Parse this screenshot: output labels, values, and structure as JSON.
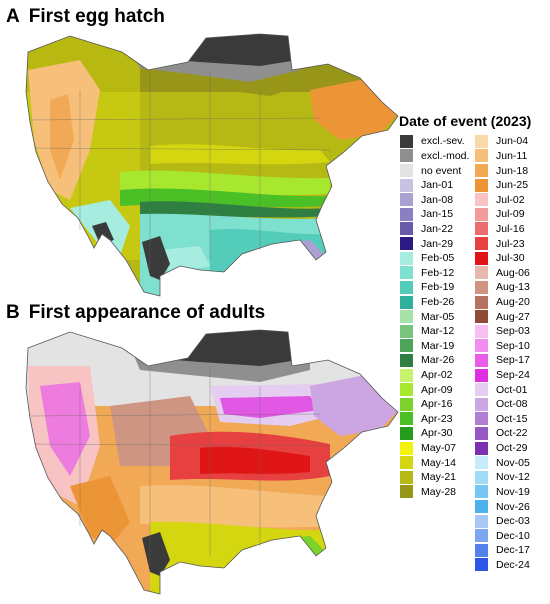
{
  "panels": [
    {
      "letter": "A",
      "title": "First egg hatch"
    },
    {
      "letter": "B",
      "title": "First appearance of adults"
    }
  ],
  "legend": {
    "title": "Date of event (2023)",
    "entries": [
      {
        "label": "excl.-sev.",
        "color": "#3a3a3a"
      },
      {
        "label": "excl.-mod.",
        "color": "#8f8f8f"
      },
      {
        "label": "no event",
        "color": "#e3e3e3"
      },
      {
        "label": "Jan-01",
        "color": "#c9c2e3"
      },
      {
        "label": "Jan-08",
        "color": "#aaa0d2"
      },
      {
        "label": "Jan-15",
        "color": "#8a7fc0"
      },
      {
        "label": "Jan-22",
        "color": "#6a5aac"
      },
      {
        "label": "Jan-29",
        "color": "#2e1a84"
      },
      {
        "label": "Feb-05",
        "color": "#a6ecdf"
      },
      {
        "label": "Feb-12",
        "color": "#7ee0cf"
      },
      {
        "label": "Feb-19",
        "color": "#53cdb9"
      },
      {
        "label": "Feb-26",
        "color": "#2fb09d"
      },
      {
        "label": "Mar-05",
        "color": "#a9e2a9"
      },
      {
        "label": "Mar-12",
        "color": "#78c67e"
      },
      {
        "label": "Mar-19",
        "color": "#4fa45c"
      },
      {
        "label": "Mar-26",
        "color": "#2f7f42"
      },
      {
        "label": "Apr-02",
        "color": "#c9f26c"
      },
      {
        "label": "Apr-09",
        "color": "#a7e82f"
      },
      {
        "label": "Apr-16",
        "color": "#7bd22a"
      },
      {
        "label": "Apr-23",
        "color": "#4bbf26"
      },
      {
        "label": "Apr-30",
        "color": "#259a1b"
      },
      {
        "label": "May-07",
        "color": "#f2f20c"
      },
      {
        "label": "May-14",
        "color": "#d4d60f"
      },
      {
        "label": "May-21",
        "color": "#b6b814"
      },
      {
        "label": "May-28",
        "color": "#979618"
      },
      {
        "label": "Jun-04",
        "color": "#f9d9a8"
      },
      {
        "label": "Jun-11",
        "color": "#f6c07b"
      },
      {
        "label": "Jun-18",
        "color": "#f2a956"
      },
      {
        "label": "Jun-25",
        "color": "#ec9537"
      },
      {
        "label": "Jul-02",
        "color": "#f7c3c3"
      },
      {
        "label": "Jul-09",
        "color": "#f29b9b"
      },
      {
        "label": "Jul-16",
        "color": "#ec6d6d"
      },
      {
        "label": "Jul-23",
        "color": "#e64040"
      },
      {
        "label": "Jul-30",
        "color": "#e01616"
      },
      {
        "label": "Aug-06",
        "color": "#e6b8ae"
      },
      {
        "label": "Aug-13",
        "color": "#cf9583"
      },
      {
        "label": "Aug-20",
        "color": "#b5725e"
      },
      {
        "label": "Aug-27",
        "color": "#8f4b36"
      },
      {
        "label": "Sep-03",
        "color": "#f7bff2"
      },
      {
        "label": "Sep-10",
        "color": "#f28ef0"
      },
      {
        "label": "Sep-17",
        "color": "#ea5de9"
      },
      {
        "label": "Sep-24",
        "color": "#df2fe0"
      },
      {
        "label": "Oct-01",
        "color": "#e4cdf0"
      },
      {
        "label": "Oct-08",
        "color": "#cba6e2"
      },
      {
        "label": "Oct-15",
        "color": "#b07fd3"
      },
      {
        "label": "Oct-22",
        "color": "#9658c3"
      },
      {
        "label": "Oct-29",
        "color": "#7d30b2"
      },
      {
        "label": "Nov-05",
        "color": "#c6ecfb"
      },
      {
        "label": "Nov-12",
        "color": "#9fdaf7"
      },
      {
        "label": "Nov-19",
        "color": "#75c6f3"
      },
      {
        "label": "Nov-26",
        "color": "#4fb0ee"
      },
      {
        "label": "Dec-03",
        "color": "#a9c6f5"
      },
      {
        "label": "Dec-10",
        "color": "#7ea5f1"
      },
      {
        "label": "Dec-17",
        "color": "#5581ec"
      },
      {
        "label": "Dec-24",
        "color": "#2e56e6"
      }
    ]
  }
}
